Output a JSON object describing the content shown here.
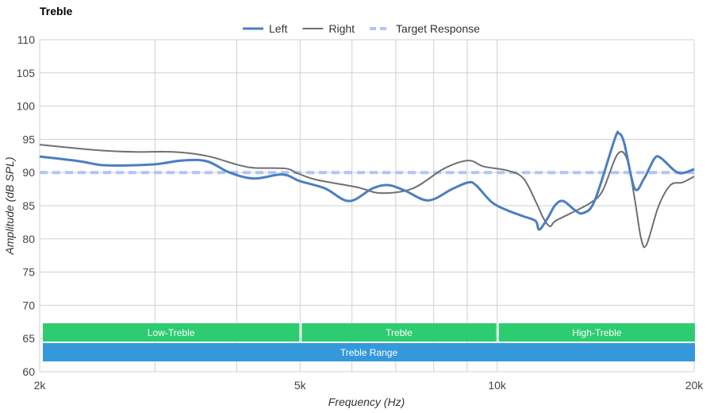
{
  "chart_data": {
    "type": "line",
    "title": "Treble",
    "xlabel": "Frequency (Hz)",
    "ylabel": "Amplitude (dB SPL)",
    "xscale": "log",
    "xlim": [
      2000,
      20000
    ],
    "ylim": [
      60,
      110
    ],
    "grid": true,
    "legend_position": "top-center",
    "x_ticks": [
      {
        "value": 2000,
        "label": "2k"
      },
      {
        "value": 5000,
        "label": "5k"
      },
      {
        "value": 10000,
        "label": "10k"
      },
      {
        "value": 20000,
        "label": "20k"
      }
    ],
    "x_minor_gridlines": [
      3000,
      4000,
      6000,
      7000,
      8000,
      9000
    ],
    "y_ticks": [
      60,
      65,
      70,
      75,
      80,
      85,
      90,
      95,
      100,
      105,
      110
    ],
    "series": [
      {
        "name": "Left",
        "color": "#4a7fc1",
        "style": "solid",
        "x": [
          2000,
          2300,
          2500,
          2800,
          3040,
          3300,
          3600,
          3900,
          4250,
          4700,
          5000,
          5460,
          5940,
          6450,
          6820,
          7220,
          7850,
          8530,
          9030,
          9280,
          9820,
          10370,
          10970,
          11450,
          11600,
          11940,
          12270,
          12620,
          13160,
          13540,
          14100,
          15120,
          15340,
          15640,
          16220,
          16770,
          17390,
          17780,
          18660,
          19190,
          20000
        ],
        "y": [
          92.4,
          91.7,
          91.1,
          91.1,
          91.3,
          91.8,
          91.7,
          90.0,
          89.1,
          89.7,
          88.7,
          87.6,
          85.7,
          87.6,
          88.1,
          87.3,
          85.8,
          87.5,
          88.5,
          88.1,
          85.5,
          84.3,
          83.4,
          82.7,
          81.4,
          83.1,
          85.1,
          85.7,
          84.3,
          83.9,
          85.8,
          95.0,
          95.9,
          94.4,
          87.6,
          89.1,
          92.1,
          92.2,
          90.3,
          89.9,
          90.5
        ]
      },
      {
        "name": "Right",
        "color": "#707070",
        "style": "solid",
        "x": [
          2000,
          2300,
          2500,
          2800,
          3200,
          3600,
          4000,
          4250,
          4750,
          4950,
          5300,
          6100,
          6640,
          7430,
          8300,
          9030,
          9540,
          10370,
          10970,
          11470,
          11770,
          12040,
          12270,
          12980,
          13920,
          14500,
          15260,
          15780,
          16220,
          16590,
          16910,
          17640,
          18400,
          19190,
          20000
        ],
        "y": [
          94.2,
          93.6,
          93.3,
          93.1,
          93.1,
          92.5,
          91.2,
          90.7,
          90.6,
          89.9,
          88.9,
          87.8,
          86.9,
          87.6,
          90.6,
          91.8,
          90.9,
          90.3,
          89.1,
          85.5,
          83.1,
          81.9,
          82.7,
          83.9,
          85.5,
          87.3,
          92.7,
          92.1,
          86.1,
          80.1,
          79.1,
          84.9,
          88.1,
          88.5,
          89.4
        ]
      },
      {
        "name": "Target Response",
        "color": "#b3c3f7",
        "style": "dashed",
        "x": [
          2000,
          20000
        ],
        "y": [
          90,
          90
        ]
      }
    ],
    "bands": [
      {
        "label": "Low-Treble",
        "from": 2000,
        "to": 5000,
        "color": "#2ecc71",
        "row": 0
      },
      {
        "label": "Treble",
        "from": 5000,
        "to": 10000,
        "color": "#2ecc71",
        "row": 0
      },
      {
        "label": "High-Treble",
        "from": 10000,
        "to": 20000,
        "color": "#2ecc71",
        "row": 0
      },
      {
        "label": "Treble Range",
        "from": 2000,
        "to": 20000,
        "color": "#3498db",
        "row": 1
      }
    ]
  }
}
